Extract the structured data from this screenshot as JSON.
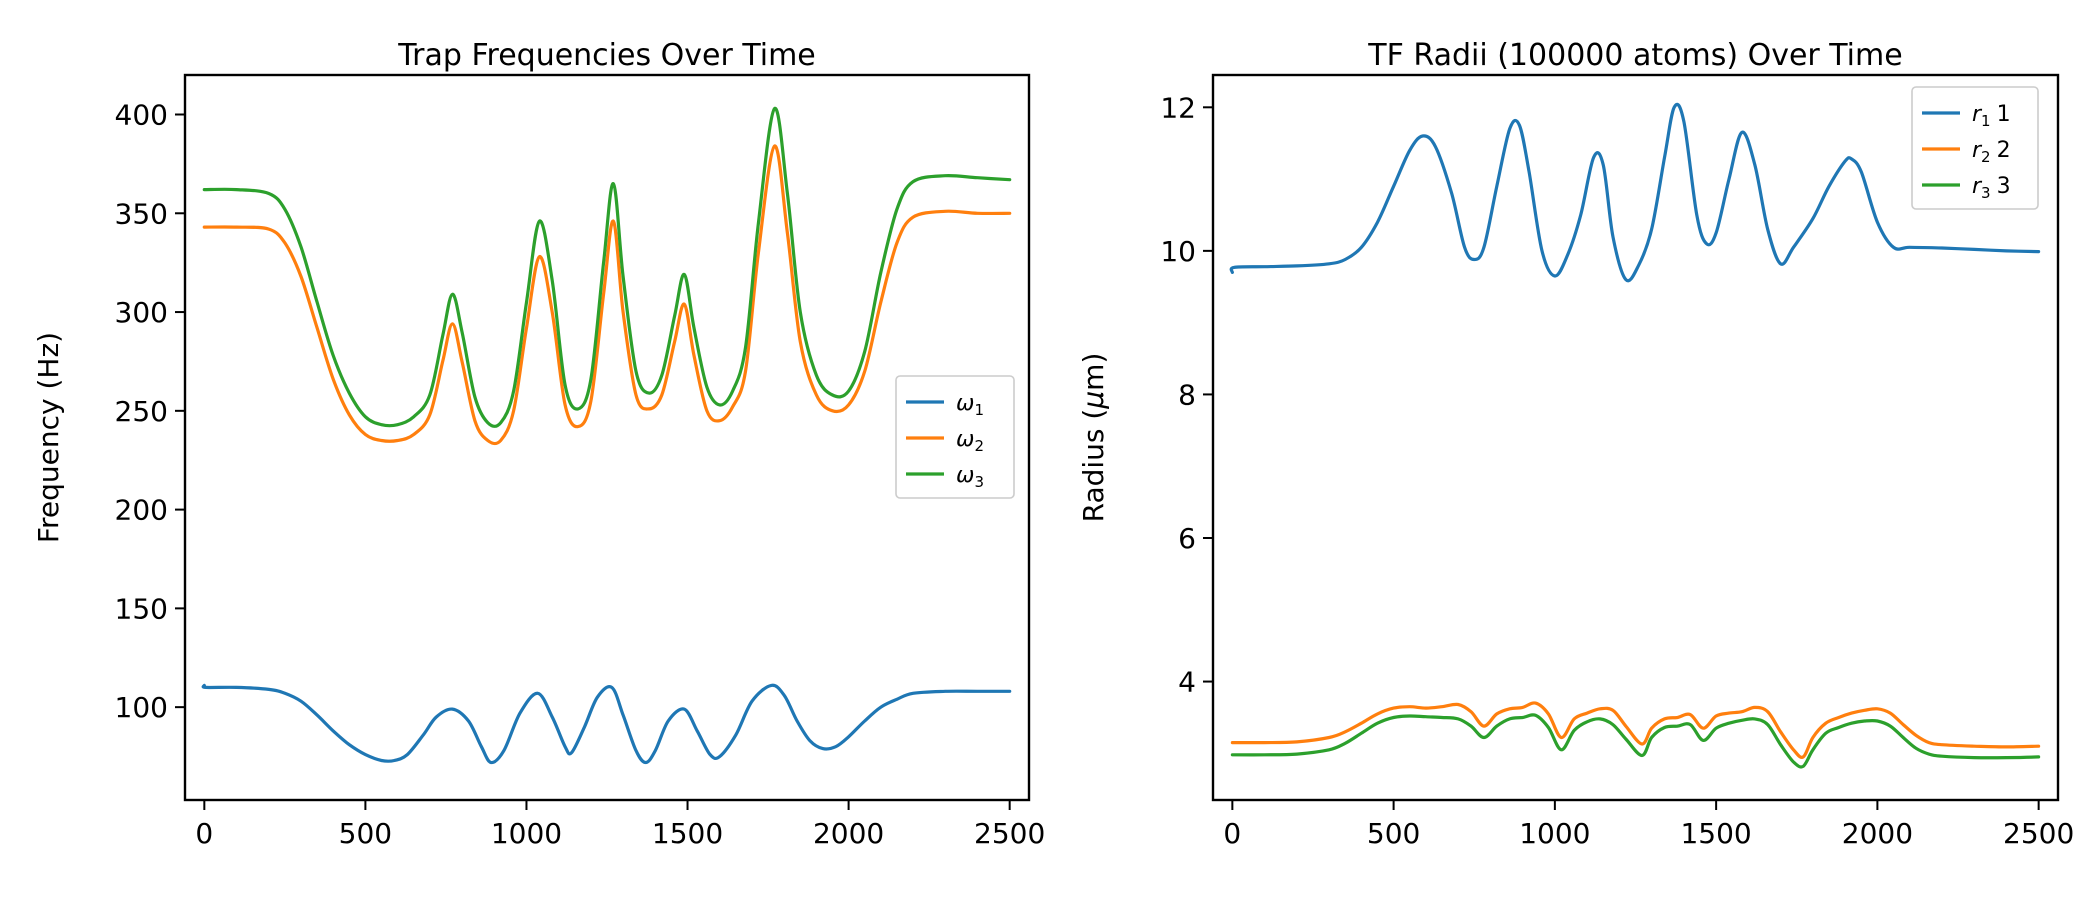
{
  "chart_data": [
    {
      "type": "line",
      "title": "Trap Frequencies Over Time",
      "xlabel": "",
      "ylabel": "Frequency (Hz)",
      "xlim": [
        -60,
        2560
      ],
      "ylim": [
        53,
        420
      ],
      "xticks": [
        0,
        500,
        1000,
        1500,
        2000,
        2500
      ],
      "yticks": [
        100,
        150,
        200,
        250,
        300,
        350,
        400
      ],
      "legend": {
        "placement": "center-right"
      },
      "grid": false,
      "series": [
        {
          "name": "ω₁",
          "name_base": "ω",
          "name_sub": "1",
          "color": "#1f77b4",
          "x": [
            0,
            5,
            100,
            200,
            250,
            300,
            350,
            400,
            450,
            500,
            550,
            590,
            630,
            680,
            720,
            770,
            820,
            860,
            890,
            930,
            980,
            1035,
            1080,
            1120,
            1140,
            1180,
            1220,
            1265,
            1300,
            1340,
            1370,
            1400,
            1440,
            1490,
            1530,
            1570,
            1600,
            1650,
            1700,
            1760,
            1800,
            1840,
            1880,
            1920,
            1960,
            2000,
            2050,
            2100,
            2150,
            2200,
            2300,
            2400,
            2500
          ],
          "y": [
            111,
            110,
            110,
            109,
            107,
            103,
            96,
            88,
            81,
            76,
            73,
            73,
            76,
            86,
            95,
            99,
            93,
            80,
            72,
            78,
            97,
            107,
            95,
            80,
            77,
            90,
            105,
            110,
            96,
            78,
            72,
            78,
            93,
            99,
            88,
            76,
            75,
            86,
            103,
            111,
            106,
            93,
            83,
            79,
            80,
            85,
            93,
            100,
            104,
            107,
            108,
            108,
            108
          ]
        },
        {
          "name": "ω₂",
          "name_base": "ω",
          "name_sub": "2",
          "color": "#ff7f0e",
          "x": [
            0,
            100,
            200,
            250,
            300,
            350,
            400,
            450,
            500,
            550,
            600,
            650,
            700,
            740,
            770,
            800,
            840,
            880,
            920,
            960,
            1000,
            1040,
            1080,
            1120,
            1160,
            1200,
            1240,
            1270,
            1300,
            1340,
            1380,
            1420,
            1460,
            1490,
            1520,
            1560,
            1600,
            1640,
            1680,
            1720,
            1770,
            1810,
            1850,
            1900,
            1950,
            2000,
            2050,
            2100,
            2150,
            2200,
            2300,
            2400,
            2500
          ],
          "y": [
            343,
            343,
            342,
            335,
            318,
            292,
            266,
            248,
            238,
            235,
            235,
            238,
            248,
            275,
            294,
            275,
            245,
            235,
            235,
            250,
            292,
            328,
            300,
            253,
            242,
            255,
            310,
            346,
            300,
            258,
            251,
            258,
            285,
            304,
            278,
            250,
            245,
            252,
            270,
            330,
            384,
            340,
            285,
            258,
            250,
            253,
            270,
            305,
            335,
            348,
            351,
            350,
            350
          ]
        },
        {
          "name": "ω₃",
          "name_base": "ω",
          "name_sub": "3",
          "color": "#2ca02c",
          "x": [
            0,
            100,
            200,
            250,
            300,
            350,
            400,
            450,
            500,
            550,
            600,
            650,
            700,
            740,
            770,
            800,
            840,
            880,
            920,
            960,
            1000,
            1040,
            1080,
            1120,
            1160,
            1200,
            1240,
            1270,
            1300,
            1340,
            1380,
            1420,
            1460,
            1490,
            1520,
            1560,
            1600,
            1640,
            1680,
            1720,
            1770,
            1810,
            1850,
            1900,
            1950,
            2000,
            2050,
            2100,
            2150,
            2200,
            2300,
            2400,
            2500
          ],
          "y": [
            362,
            362,
            360,
            352,
            333,
            305,
            278,
            259,
            247,
            243,
            243,
            247,
            258,
            288,
            309,
            290,
            257,
            244,
            244,
            260,
            305,
            346,
            316,
            263,
            251,
            266,
            326,
            365,
            318,
            270,
            259,
            268,
            298,
            319,
            292,
            262,
            253,
            260,
            282,
            345,
            403,
            360,
            300,
            268,
            258,
            260,
            280,
            320,
            352,
            366,
            369,
            368,
            367
          ]
        }
      ]
    },
    {
      "type": "line",
      "title": "TF Radii (100000 atoms) Over Time",
      "xlabel": "",
      "ylabel": "Radius (μm)",
      "ylabel_prefix": "Radius (",
      "ylabel_symbol": "μ",
      "ylabel_suffix": "m)",
      "xlim": [
        -60,
        2560
      ],
      "ylim": [
        2.35,
        12.45
      ],
      "xticks": [
        0,
        500,
        1000,
        1500,
        2000,
        2500
      ],
      "yticks": [
        4,
        6,
        8,
        10,
        12
      ],
      "legend": {
        "placement": "top-right"
      },
      "grid": false,
      "series": [
        {
          "name": "r₁ 1",
          "name_base": "r",
          "name_sub": "1",
          "name_suffix": "1",
          "color": "#1f77b4",
          "x": [
            0,
            5,
            100,
            200,
            300,
            350,
            400,
            450,
            500,
            550,
            590,
            630,
            680,
            720,
            750,
            780,
            820,
            860,
            890,
            920,
            960,
            1000,
            1040,
            1080,
            1120,
            1150,
            1180,
            1220,
            1260,
            1300,
            1340,
            1370,
            1400,
            1440,
            1470,
            1500,
            1540,
            1580,
            1620,
            1660,
            1700,
            1740,
            1800,
            1850,
            1900,
            1920,
            1950,
            2000,
            2050,
            2100,
            2200,
            2300,
            2400,
            2500
          ],
          "y": [
            9.7,
            9.77,
            9.78,
            9.79,
            9.82,
            9.88,
            10.05,
            10.4,
            10.9,
            11.4,
            11.6,
            11.45,
            10.8,
            10.05,
            9.88,
            10.05,
            10.9,
            11.7,
            11.75,
            11.1,
            10.0,
            9.65,
            9.95,
            10.5,
            11.3,
            11.2,
            10.2,
            9.6,
            9.8,
            10.3,
            11.3,
            12.0,
            11.8,
            10.5,
            10.1,
            10.25,
            11.0,
            11.65,
            11.2,
            10.3,
            9.82,
            10.05,
            10.45,
            10.9,
            11.25,
            11.28,
            11.1,
            10.4,
            10.05,
            10.05,
            10.04,
            10.02,
            10.0,
            9.99
          ]
        },
        {
          "name": "r₂ 2",
          "name_base": "r",
          "name_sub": "2",
          "name_suffix": "2",
          "color": "#ff7f0e",
          "x": [
            0,
            100,
            200,
            300,
            350,
            400,
            450,
            500,
            550,
            600,
            650,
            700,
            740,
            780,
            820,
            860,
            900,
            940,
            980,
            1020,
            1060,
            1100,
            1140,
            1180,
            1220,
            1270,
            1300,
            1340,
            1380,
            1420,
            1460,
            1500,
            1540,
            1580,
            1620,
            1660,
            1700,
            1740,
            1770,
            1800,
            1840,
            1880,
            1920,
            1960,
            2000,
            2040,
            2080,
            2120,
            2160,
            2200,
            2300,
            2400,
            2500
          ],
          "y": [
            3.15,
            3.15,
            3.16,
            3.22,
            3.3,
            3.42,
            3.55,
            3.63,
            3.65,
            3.63,
            3.65,
            3.68,
            3.58,
            3.38,
            3.55,
            3.62,
            3.64,
            3.7,
            3.55,
            3.22,
            3.48,
            3.56,
            3.62,
            3.6,
            3.38,
            3.13,
            3.35,
            3.48,
            3.5,
            3.54,
            3.35,
            3.52,
            3.56,
            3.58,
            3.64,
            3.58,
            3.3,
            3.05,
            2.95,
            3.22,
            3.42,
            3.5,
            3.56,
            3.6,
            3.62,
            3.56,
            3.4,
            3.25,
            3.15,
            3.12,
            3.1,
            3.09,
            3.1
          ]
        },
        {
          "name": "r₃ 3",
          "name_base": "r",
          "name_sub": "3",
          "name_suffix": "3",
          "color": "#2ca02c",
          "x": [
            0,
            100,
            200,
            300,
            350,
            400,
            450,
            500,
            550,
            600,
            650,
            700,
            740,
            780,
            820,
            860,
            900,
            940,
            980,
            1020,
            1060,
            1100,
            1140,
            1180,
            1220,
            1270,
            1300,
            1340,
            1380,
            1420,
            1460,
            1500,
            1540,
            1580,
            1620,
            1660,
            1700,
            1740,
            1770,
            1800,
            1840,
            1880,
            1920,
            1960,
            2000,
            2040,
            2080,
            2120,
            2160,
            2200,
            2300,
            2400,
            2500
          ],
          "y": [
            2.98,
            2.98,
            2.99,
            3.05,
            3.14,
            3.28,
            3.42,
            3.5,
            3.52,
            3.51,
            3.5,
            3.48,
            3.38,
            3.22,
            3.38,
            3.48,
            3.5,
            3.53,
            3.36,
            3.05,
            3.32,
            3.44,
            3.48,
            3.4,
            3.2,
            2.97,
            3.22,
            3.36,
            3.38,
            3.4,
            3.18,
            3.35,
            3.42,
            3.46,
            3.48,
            3.4,
            3.12,
            2.88,
            2.82,
            3.05,
            3.28,
            3.36,
            3.42,
            3.45,
            3.45,
            3.38,
            3.22,
            3.07,
            2.99,
            2.96,
            2.94,
            2.94,
            2.95
          ]
        }
      ]
    }
  ]
}
